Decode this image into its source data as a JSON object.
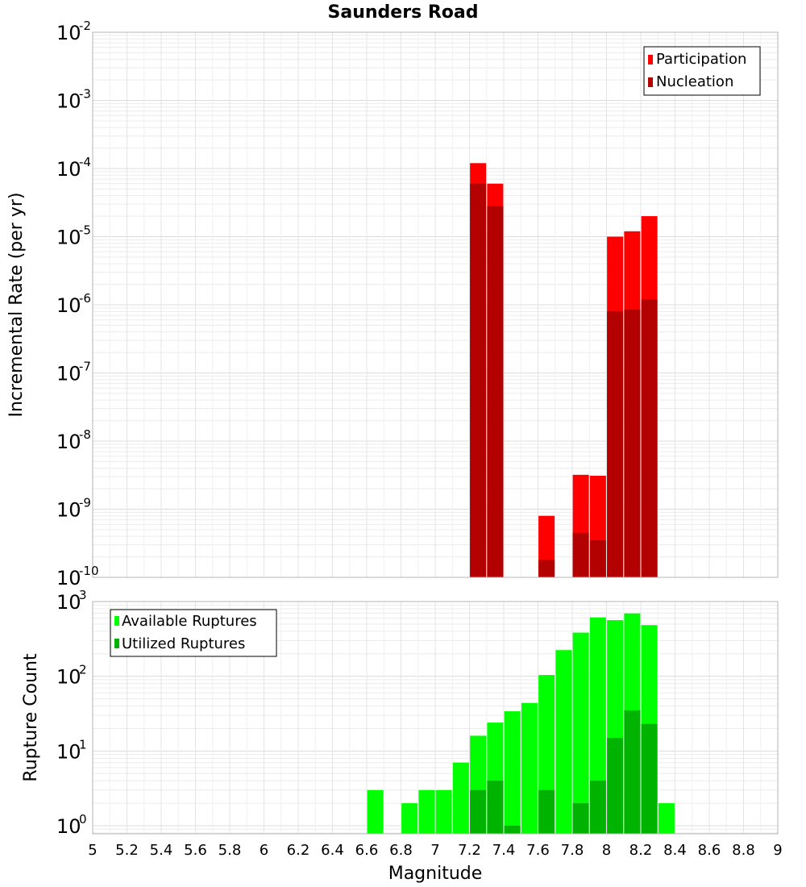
{
  "chart_data": [
    {
      "type": "bar",
      "title": "Saunders Road",
      "xlabel": "",
      "ylabel": "Incremental Rate (per yr)",
      "yscale": "log",
      "ylim": [
        1e-10,
        0.01
      ],
      "xlim": [
        5,
        9
      ],
      "grid": true,
      "legend_position": "top-right",
      "y_ticks": [
        {
          "base": "10",
          "exp": "-10"
        },
        {
          "base": "10",
          "exp": "-9"
        },
        {
          "base": "10",
          "exp": "-8"
        },
        {
          "base": "10",
          "exp": "-7"
        },
        {
          "base": "10",
          "exp": "-6"
        },
        {
          "base": "10",
          "exp": "-5"
        },
        {
          "base": "10",
          "exp": "-4"
        },
        {
          "base": "10",
          "exp": "-3"
        },
        {
          "base": "10",
          "exp": "-2"
        }
      ],
      "series": [
        {
          "name": "Participation",
          "color": "#ff0000",
          "x": [
            7.25,
            7.35,
            7.65,
            7.85,
            7.95,
            8.05,
            8.15,
            8.25
          ],
          "values": [
            0.00012,
            6e-05,
            8e-10,
            3.2e-09,
            3.1e-09,
            1e-05,
            1.2e-05,
            2e-05
          ]
        },
        {
          "name": "Nucleation",
          "color": "#b30000",
          "x": [
            7.25,
            7.35,
            7.65,
            7.85,
            7.95,
            8.05,
            8.15,
            8.25
          ],
          "values": [
            6e-05,
            2.8e-05,
            1.8e-10,
            4.5e-10,
            3.5e-10,
            8e-07,
            8.5e-07,
            1.2e-06
          ]
        }
      ]
    },
    {
      "type": "bar",
      "title": "",
      "xlabel": "Magnitude",
      "ylabel": "Rupture Count",
      "yscale": "log",
      "ylim": [
        0.78,
        1000
      ],
      "xlim": [
        5,
        9
      ],
      "grid": true,
      "legend_position": "top-left",
      "x_ticks": [
        "5",
        "5.2",
        "5.4",
        "5.6",
        "5.8",
        "6",
        "6.2",
        "6.4",
        "6.6",
        "6.8",
        "7",
        "7.2",
        "7.4",
        "7.6",
        "7.8",
        "8",
        "8.2",
        "8.4",
        "8.6",
        "8.8",
        "9"
      ],
      "y_ticks": [
        {
          "base": "10",
          "exp": "0"
        },
        {
          "base": "10",
          "exp": "1"
        },
        {
          "base": "10",
          "exp": "2"
        },
        {
          "base": "10",
          "exp": "3"
        }
      ],
      "series": [
        {
          "name": "Available Ruptures",
          "color": "#00ff00",
          "x": [
            6.65,
            6.85,
            6.95,
            7.05,
            7.15,
            7.25,
            7.35,
            7.45,
            7.55,
            7.65,
            7.75,
            7.85,
            7.95,
            8.05,
            8.15,
            8.25,
            8.35
          ],
          "values": [
            3,
            2,
            3,
            3,
            7,
            16,
            24,
            34,
            44,
            104,
            224,
            384,
            614,
            564,
            694,
            484,
            2
          ]
        },
        {
          "name": "Utilized Ruptures",
          "color": "#00b300",
          "x": [
            7.25,
            7.35,
            7.45,
            7.65,
            7.85,
            7.95,
            8.05,
            8.15,
            8.25
          ],
          "values": [
            3,
            4,
            1,
            3,
            2,
            4,
            15,
            35,
            23
          ]
        }
      ]
    }
  ]
}
